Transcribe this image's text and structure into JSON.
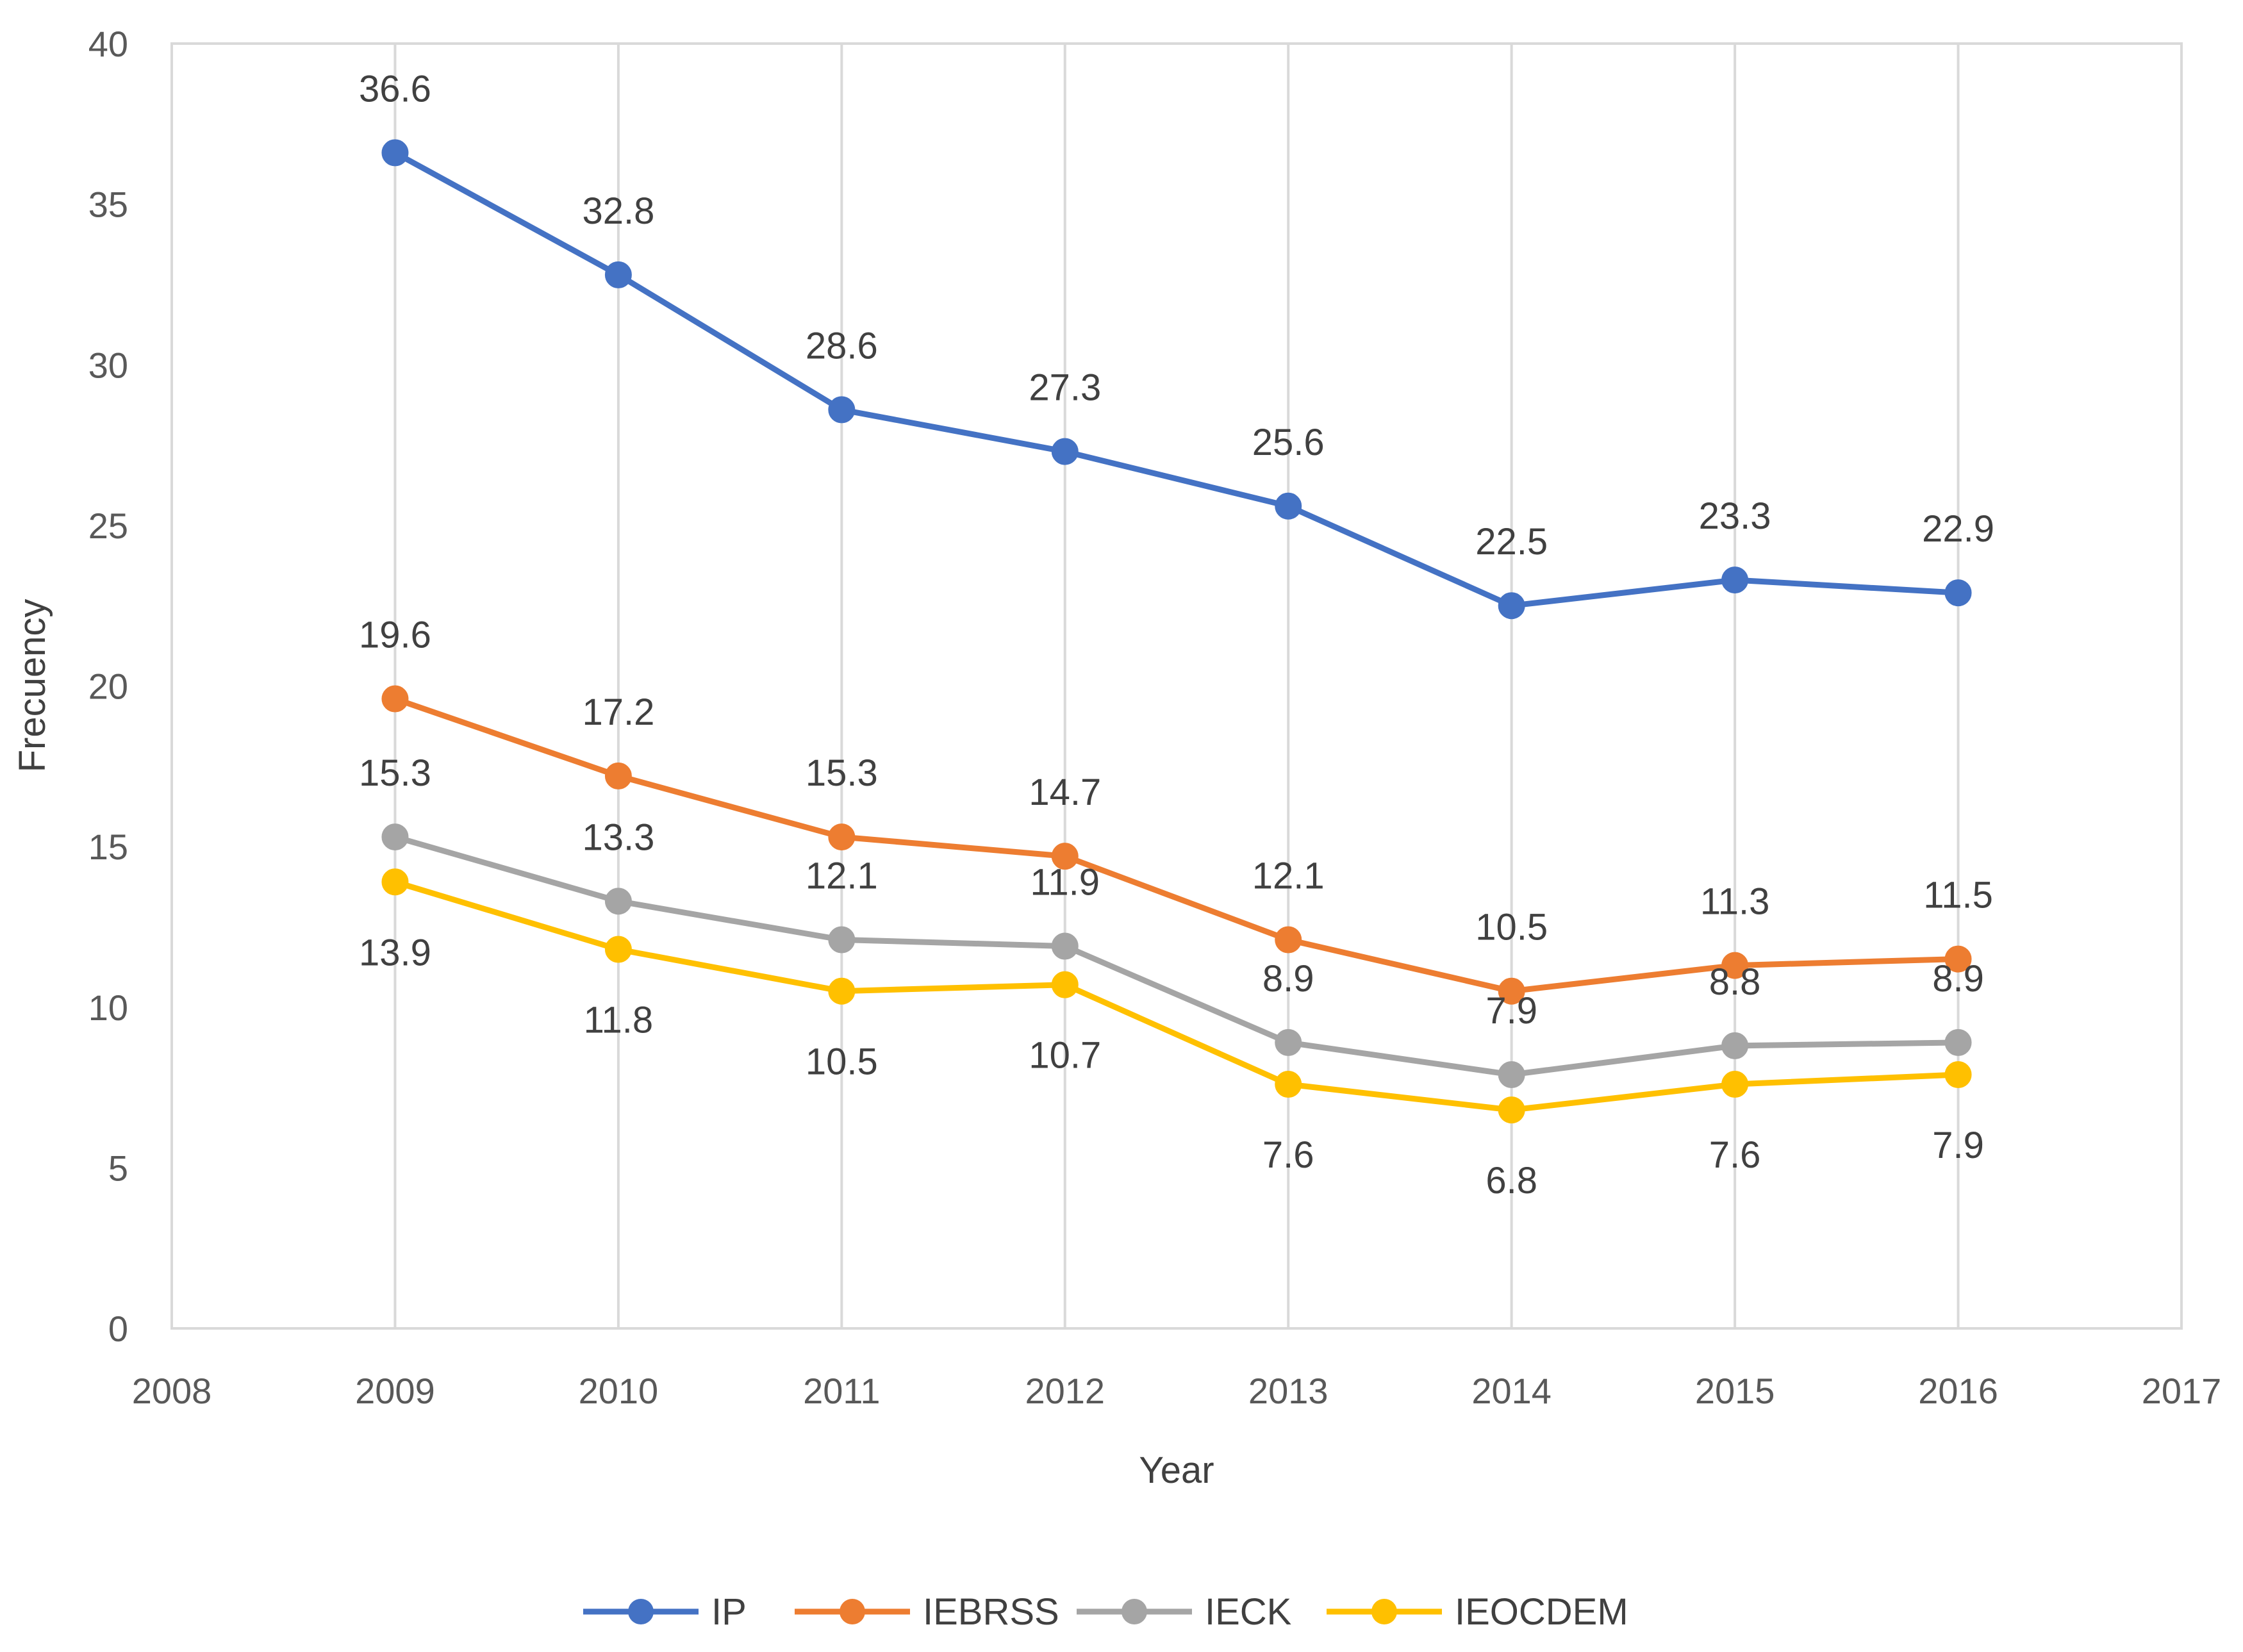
{
  "chart_data": {
    "type": "line",
    "title": "",
    "xlabel": "Year",
    "ylabel": "Frecuency",
    "xlim": [
      2008,
      2017
    ],
    "ylim": [
      0,
      40
    ],
    "xticks": [
      "2008",
      "2009",
      "2010",
      "2011",
      "2012",
      "2013",
      "2014",
      "2015",
      "2016",
      "2017"
    ],
    "yticks": [
      "0",
      "5",
      "10",
      "15",
      "20",
      "25",
      "30",
      "35",
      "40"
    ],
    "x": [
      2009,
      2010,
      2011,
      2012,
      2013,
      2014,
      2015,
      2016
    ],
    "grid": "vertical",
    "legend_position": "bottom",
    "series": [
      {
        "name": "IP",
        "color": "#4472C4",
        "values": [
          36.6,
          32.8,
          28.6,
          27.3,
          25.6,
          22.5,
          23.3,
          22.9
        ],
        "label_position": "above",
        "labels": [
          "36.6",
          "32.8",
          "28.6",
          "27.3",
          "25.6",
          "22.5",
          "23.3",
          "22.9"
        ]
      },
      {
        "name": "IEBRSS",
        "color": "#ED7D31",
        "values": [
          19.6,
          17.2,
          15.3,
          14.7,
          12.1,
          10.5,
          11.3,
          11.5
        ],
        "label_position": "above",
        "labels": [
          "19.6",
          "17.2",
          "15.3",
          "14.7",
          "12.1",
          "10.5",
          "11.3",
          "11.5"
        ]
      },
      {
        "name": "IECK",
        "color": "#A5A5A5",
        "values": [
          15.3,
          13.3,
          12.1,
          11.9,
          8.9,
          7.9,
          8.8,
          8.9
        ],
        "label_position": "above",
        "labels": [
          "15.3",
          "13.3",
          "12.1",
          "11.9",
          "8.9",
          "7.9",
          "8.8",
          "8.9"
        ]
      },
      {
        "name": "IEOCDEM",
        "color": "#FFC000",
        "values": [
          13.9,
          11.8,
          10.5,
          10.7,
          7.6,
          6.8,
          7.6,
          7.9
        ],
        "label_position": "below",
        "labels": [
          "13.9",
          "11.8",
          "10.5",
          "10.7",
          "7.6",
          "6.8",
          "7.6",
          "7.9"
        ]
      }
    ]
  }
}
